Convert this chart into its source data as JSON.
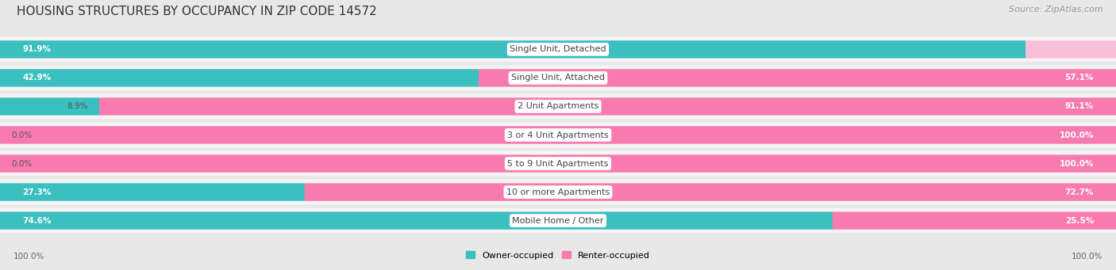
{
  "title": "HOUSING STRUCTURES BY OCCUPANCY IN ZIP CODE 14572",
  "source": "Source: ZipAtlas.com",
  "categories": [
    "Single Unit, Detached",
    "Single Unit, Attached",
    "2 Unit Apartments",
    "3 or 4 Unit Apartments",
    "5 to 9 Unit Apartments",
    "10 or more Apartments",
    "Mobile Home / Other"
  ],
  "owner_pct": [
    91.9,
    42.9,
    8.9,
    0.0,
    0.0,
    27.3,
    74.6
  ],
  "renter_pct": [
    8.1,
    57.1,
    91.1,
    100.0,
    100.0,
    72.7,
    25.5
  ],
  "owner_color": "#3BBFBF",
  "renter_color": "#F87BAF",
  "renter_color_light": "#F9BFDA",
  "owner_color_light": "#A8DFDF",
  "bg_color": "#E8E8E8",
  "row_bg_color": "#F5F5F5",
  "title_fontsize": 11,
  "source_fontsize": 8,
  "label_fontsize": 8,
  "bar_label_fontsize": 7.5,
  "legend_fontsize": 8,
  "axis_label_fontsize": 7.5
}
